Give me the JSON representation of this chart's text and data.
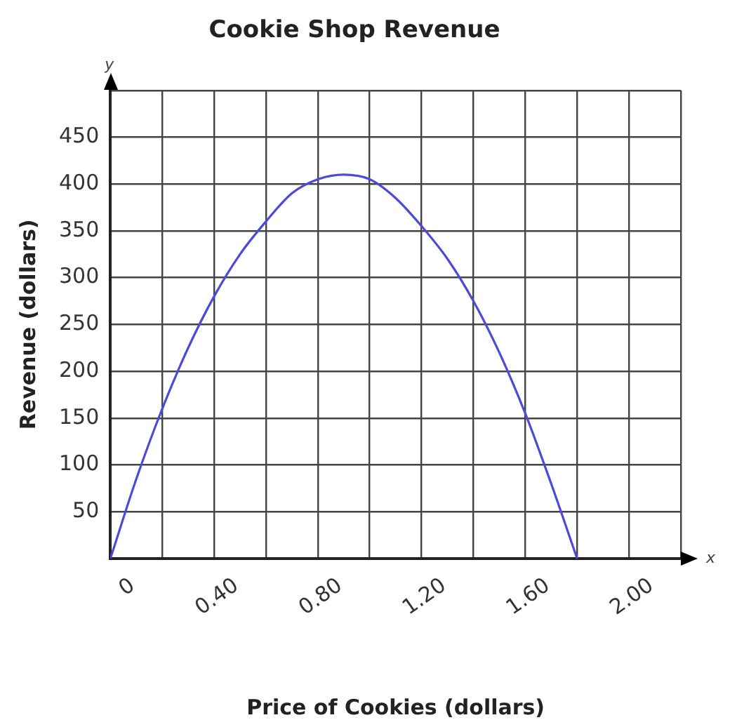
{
  "chart_data": {
    "type": "line",
    "title": "Cookie Shop Revenue",
    "xlabel": "Price of Cookies (dollars)",
    "ylabel": "Revenue (dollars)",
    "annotations": [
      "y",
      "x"
    ],
    "series": [
      {
        "color": "#4b4bd8",
        "x": [
          0,
          0.1,
          0.2,
          0.3,
          0.4,
          0.5,
          0.6,
          0.7,
          0.8,
          0.9,
          1.0,
          1.1,
          1.2,
          1.3,
          1.4,
          1.5,
          1.6,
          1.7,
          1.8
        ],
        "values": [
          0,
          85,
          160,
          225,
          280,
          325,
          360,
          390,
          405,
          410,
          405,
          385,
          355,
          320,
          275,
          220,
          155,
          80,
          0
        ]
      }
    ],
    "xlim": [
      0,
      2.2
    ],
    "xticks": [
      {
        "value": 0,
        "label": "0"
      },
      {
        "value": 0.2,
        "label": null
      },
      {
        "value": 0.4,
        "label": "0.40"
      },
      {
        "value": 0.6,
        "label": null
      },
      {
        "value": 0.8,
        "label": "0.80"
      },
      {
        "value": 1.0,
        "label": null
      },
      {
        "value": 1.2,
        "label": "1.20"
      },
      {
        "value": 1.4,
        "label": null
      },
      {
        "value": 1.6,
        "label": "1.60"
      },
      {
        "value": 1.8,
        "label": null
      },
      {
        "value": 2.0,
        "label": "2.00"
      },
      {
        "value": 2.2,
        "label": null
      }
    ],
    "ylim": [
      0,
      500
    ],
    "yticks": [
      {
        "value": 0,
        "label": null
      },
      50,
      100,
      150,
      200,
      250,
      300,
      350,
      400,
      450,
      {
        "value": 500,
        "label": null
      }
    ],
    "grid": true,
    "legend": false,
    "marker": "none",
    "line_style": "solid"
  }
}
